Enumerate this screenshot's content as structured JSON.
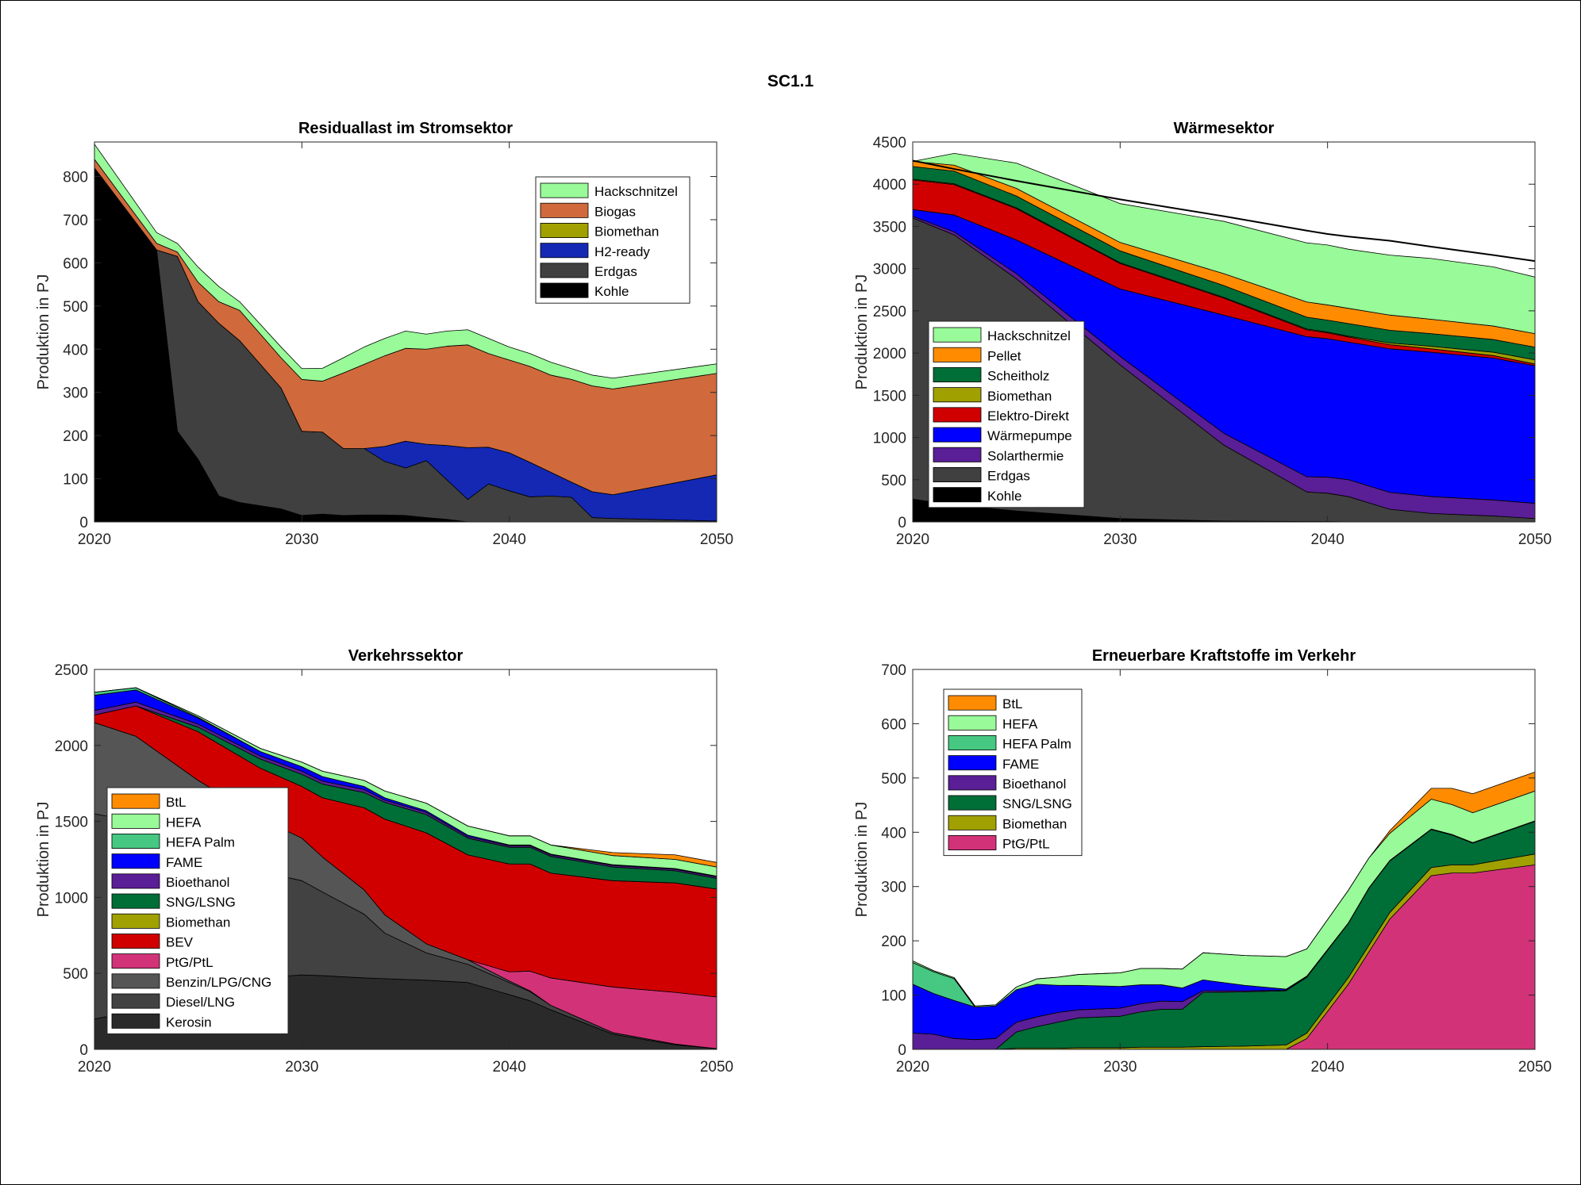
{
  "figure_title": "SC1.1",
  "chart_data": [
    {
      "type": "area",
      "stacked": true,
      "title": "Residuallast im Stromsektor",
      "xlabel": "",
      "ylabel": "Produktion in PJ",
      "xlim": [
        2020,
        2050
      ],
      "ylim": [
        0,
        880
      ],
      "xticks": [
        2020,
        2030,
        2040,
        2050
      ],
      "yticks": [
        0,
        100,
        200,
        300,
        400,
        500,
        600,
        700,
        800
      ],
      "legend_position": "top-right",
      "x": [
        2020,
        2023,
        2024,
        2025,
        2026,
        2027,
        2029,
        2030,
        2031,
        2032,
        2033,
        2034,
        2035,
        2036,
        2037,
        2038,
        2039,
        2040,
        2041,
        2042,
        2043,
        2044,
        2045,
        2050
      ],
      "series": [
        {
          "name": "Kohle",
          "color": "#000000",
          "values": [
            820,
            630,
            210,
            145,
            60,
            45,
            30,
            15,
            18,
            15,
            16,
            16,
            15,
            10,
            6,
            0,
            0,
            0,
            0,
            0,
            0,
            0,
            0,
            0
          ]
        },
        {
          "name": "Erdgas",
          "color": "#404040",
          "values": [
            0,
            0,
            405,
            365,
            400,
            375,
            280,
            195,
            190,
            155,
            154,
            124,
            110,
            132,
            91,
            52,
            88,
            72,
            58,
            60,
            57,
            10,
            8,
            2
          ]
        },
        {
          "name": "H2-ready",
          "color": "#1428B4",
          "values": [
            0,
            0,
            0,
            0,
            0,
            0,
            0,
            0,
            0,
            0,
            0,
            35,
            62,
            38,
            80,
            120,
            85,
            88,
            80,
            55,
            35,
            60,
            55,
            107
          ]
        },
        {
          "name": "Biomethan",
          "color": "#A0A000",
          "values": [
            0,
            0,
            0,
            0,
            0,
            0,
            0,
            0,
            0,
            0,
            0,
            0,
            0,
            0,
            0,
            0,
            0,
            0,
            0,
            0,
            0,
            0,
            0,
            0
          ]
        },
        {
          "name": "Biogas",
          "color": "#D06A3C",
          "values": [
            20,
            15,
            10,
            45,
            50,
            70,
            70,
            120,
            118,
            175,
            195,
            210,
            215,
            220,
            230,
            238,
            217,
            215,
            222,
            225,
            238,
            245,
            245,
            235
          ]
        },
        {
          "name": "Hackschnitzel",
          "color": "#98FA98",
          "values": [
            35,
            25,
            20,
            35,
            35,
            20,
            25,
            25,
            30,
            35,
            40,
            40,
            40,
            35,
            35,
            35,
            35,
            30,
            30,
            30,
            25,
            25,
            25,
            22
          ]
        }
      ]
    },
    {
      "type": "area",
      "stacked": true,
      "title": "Wärmesektor",
      "xlabel": "",
      "ylabel": "Produktion in PJ",
      "xlim": [
        2020,
        2050
      ],
      "ylim": [
        0,
        4500
      ],
      "xticks": [
        2020,
        2030,
        2040,
        2050
      ],
      "yticks": [
        0,
        500,
        1000,
        1500,
        2000,
        2500,
        3000,
        3500,
        4000,
        4500
      ],
      "legend_position": "bottom-left",
      "x": [
        2020,
        2022,
        2025,
        2030,
        2035,
        2039,
        2040,
        2041,
        2043,
        2045,
        2048,
        2050
      ],
      "series": [
        {
          "name": "Kohle",
          "color": "#000000",
          "values": [
            270,
            200,
            130,
            40,
            10,
            5,
            5,
            0,
            0,
            0,
            0,
            0
          ]
        },
        {
          "name": "Erdgas",
          "color": "#404040",
          "values": [
            3330,
            3200,
            2750,
            1820,
            900,
            350,
            335,
            300,
            150,
            100,
            70,
            40
          ]
        },
        {
          "name": "Solarthermie",
          "color": "#5A1E96",
          "values": [
            20,
            35,
            60,
            100,
            140,
            180,
            190,
            200,
            200,
            200,
            190,
            180
          ]
        },
        {
          "name": "Wärmepumpe",
          "color": "#0000FF",
          "values": [
            80,
            200,
            400,
            800,
            1400,
            1660,
            1640,
            1630,
            1700,
            1710,
            1680,
            1630
          ]
        },
        {
          "name": "Elektro-Direkt",
          "color": "#D00000",
          "values": [
            350,
            360,
            370,
            300,
            200,
            80,
            70,
            60,
            50,
            40,
            30,
            20
          ]
        },
        {
          "name": "Biomethan",
          "color": "#A0A000",
          "values": [
            10,
            10,
            10,
            10,
            10,
            10,
            10,
            10,
            20,
            30,
            40,
            50
          ]
        },
        {
          "name": "Scheitholz",
          "color": "#006E37",
          "values": [
            150,
            150,
            140,
            140,
            140,
            140,
            140,
            150,
            150,
            150,
            150,
            150
          ]
        },
        {
          "name": "Pellet",
          "color": "#FF8C00",
          "values": [
            60,
            70,
            90,
            100,
            140,
            180,
            180,
            180,
            180,
            170,
            160,
            160
          ]
        },
        {
          "name": "Hackschnitzel",
          "color": "#98FA98",
          "values": [
            0,
            140,
            300,
            460,
            620,
            700,
            710,
            700,
            710,
            720,
            700,
            670
          ]
        }
      ],
      "total_line": {
        "color": "#000000",
        "values": [
          4280,
          4180,
          4040,
          3820,
          3620,
          3450,
          3410,
          3380,
          3330,
          3260,
          3160,
          3090
        ]
      }
    },
    {
      "type": "area",
      "stacked": true,
      "title": "Verkehrssektor",
      "xlabel": "",
      "ylabel": "Produktion in PJ",
      "xlim": [
        2020,
        2050
      ],
      "ylim": [
        0,
        2500
      ],
      "xticks": [
        2020,
        2030,
        2040,
        2050
      ],
      "yticks": [
        0,
        500,
        1000,
        1500,
        2000,
        2500
      ],
      "legend_position": "bottom-left",
      "x": [
        2020,
        2022,
        2025,
        2028,
        2030,
        2031,
        2033,
        2034,
        2036,
        2038,
        2040,
        2041,
        2042,
        2045,
        2048,
        2050
      ],
      "series": [
        {
          "name": "Kerosin",
          "color": "#2A2A2A",
          "values": [
            200,
            250,
            400,
            470,
            490,
            485,
            470,
            465,
            455,
            440,
            360,
            320,
            260,
            100,
            30,
            5
          ]
        },
        {
          "name": "Diesel/LNG",
          "color": "#424242",
          "values": [
            1350,
            1250,
            900,
            700,
            620,
            550,
            420,
            300,
            180,
            120,
            80,
            60,
            30,
            10,
            5,
            0
          ]
        },
        {
          "name": "Benzin/LPG/CNG",
          "color": "#555555",
          "values": [
            600,
            560,
            470,
            350,
            280,
            230,
            160,
            120,
            60,
            30,
            10,
            5,
            0,
            0,
            0,
            0
          ]
        },
        {
          "name": "PtG/PtL",
          "color": "#D23278",
          "values": [
            0,
            0,
            0,
            0,
            0,
            0,
            0,
            0,
            0,
            0,
            60,
            130,
            180,
            300,
            340,
            340
          ]
        },
        {
          "name": "BEV",
          "color": "#D00000",
          "values": [
            50,
            200,
            320,
            330,
            340,
            390,
            540,
            630,
            730,
            690,
            710,
            705,
            690,
            700,
            720,
            710
          ]
        },
        {
          "name": "Biomethan",
          "color": "#A0A000",
          "values": [
            0,
            0,
            0,
            0,
            0,
            0,
            0,
            0,
            0,
            0,
            0,
            0,
            0,
            0,
            0,
            0
          ]
        },
        {
          "name": "SNG/LSNG",
          "color": "#006E37",
          "values": [
            0,
            0,
            30,
            60,
            80,
            90,
            100,
            110,
            120,
            110,
            110,
            110,
            110,
            90,
            80,
            70
          ]
        },
        {
          "name": "Bioethanol",
          "color": "#5A1E96",
          "values": [
            30,
            25,
            20,
            20,
            20,
            20,
            20,
            15,
            15,
            10,
            10,
            10,
            10,
            10,
            10,
            10
          ]
        },
        {
          "name": "FAME",
          "color": "#0000FF",
          "values": [
            100,
            80,
            40,
            30,
            30,
            30,
            20,
            15,
            10,
            10,
            5,
            5,
            5,
            5,
            5,
            5
          ]
        },
        {
          "name": "HEFA Palm",
          "color": "#46C882",
          "values": [
            20,
            15,
            5,
            0,
            0,
            0,
            0,
            0,
            0,
            0,
            0,
            0,
            0,
            0,
            0,
            0
          ]
        },
        {
          "name": "HEFA",
          "color": "#98FA98",
          "values": [
            0,
            0,
            10,
            20,
            30,
            35,
            40,
            45,
            50,
            60,
            60,
            60,
            60,
            60,
            60,
            60
          ]
        },
        {
          "name": "BtL",
          "color": "#FF8C00",
          "values": [
            0,
            0,
            0,
            0,
            0,
            0,
            0,
            0,
            0,
            0,
            0,
            0,
            0,
            20,
            30,
            30
          ]
        }
      ]
    },
    {
      "type": "area",
      "stacked": true,
      "title": "Erneuerbare Kraftstoffe im Verkehr",
      "xlabel": "",
      "ylabel": "Produktion in PJ",
      "xlim": [
        2020,
        2050
      ],
      "ylim": [
        0,
        700
      ],
      "xticks": [
        2020,
        2030,
        2040,
        2050
      ],
      "yticks": [
        0,
        100,
        200,
        300,
        400,
        500,
        600,
        700
      ],
      "legend_position": "top-left",
      "x": [
        2020,
        2021,
        2022,
        2023,
        2024,
        2025,
        2026,
        2027,
        2028,
        2030,
        2031,
        2032,
        2033,
        2034,
        2036,
        2038,
        2039,
        2041,
        2042,
        2043,
        2045,
        2046,
        2047,
        2050
      ],
      "series": [
        {
          "name": "PtG/PtL",
          "color": "#D23278",
          "values": [
            0,
            0,
            0,
            0,
            0,
            0,
            0,
            0,
            0,
            0,
            0,
            0,
            0,
            0,
            0,
            0,
            20,
            120,
            180,
            240,
            320,
            325,
            325,
            340
          ]
        },
        {
          "name": "Biomethan",
          "color": "#A0A000",
          "values": [
            0,
            0,
            0,
            0,
            0,
            2,
            2,
            2,
            3,
            3,
            4,
            4,
            4,
            5,
            6,
            8,
            10,
            12,
            12,
            12,
            15,
            15,
            15,
            20
          ]
        },
        {
          "name": "SNG/LSNG",
          "color": "#006E37",
          "values": [
            0,
            0,
            0,
            0,
            0,
            30,
            40,
            48,
            55,
            58,
            65,
            70,
            70,
            100,
            100,
            100,
            103,
            100,
            105,
            95,
            70,
            55,
            40,
            60
          ]
        },
        {
          "name": "Bioethanol",
          "color": "#5A1E96",
          "values": [
            30,
            28,
            20,
            18,
            20,
            18,
            18,
            18,
            15,
            15,
            15,
            15,
            14,
            3,
            2,
            1,
            1,
            1,
            1,
            1,
            1,
            1,
            1,
            1
          ]
        },
        {
          "name": "FAME",
          "color": "#0000FF",
          "values": [
            90,
            75,
            70,
            60,
            60,
            60,
            60,
            50,
            45,
            40,
            35,
            30,
            25,
            20,
            10,
            2,
            1,
            0,
            0,
            0,
            0,
            0,
            0,
            0
          ]
        },
        {
          "name": "HEFA Palm",
          "color": "#46C882",
          "values": [
            40,
            40,
            40,
            0,
            0,
            0,
            0,
            0,
            0,
            0,
            0,
            0,
            0,
            0,
            0,
            0,
            0,
            0,
            0,
            0,
            0,
            0,
            0,
            0
          ]
        },
        {
          "name": "HEFA",
          "color": "#98FA98",
          "values": [
            3,
            2,
            2,
            2,
            2,
            5,
            10,
            15,
            20,
            25,
            30,
            30,
            35,
            50,
            55,
            60,
            50,
            60,
            55,
            50,
            55,
            55,
            55,
            55
          ]
        },
        {
          "name": "BtL",
          "color": "#FF8C00",
          "values": [
            0,
            0,
            0,
            0,
            0,
            0,
            0,
            0,
            0,
            0,
            0,
            0,
            0,
            0,
            0,
            0,
            0,
            0,
            0,
            5,
            20,
            30,
            35,
            35
          ]
        }
      ]
    }
  ]
}
